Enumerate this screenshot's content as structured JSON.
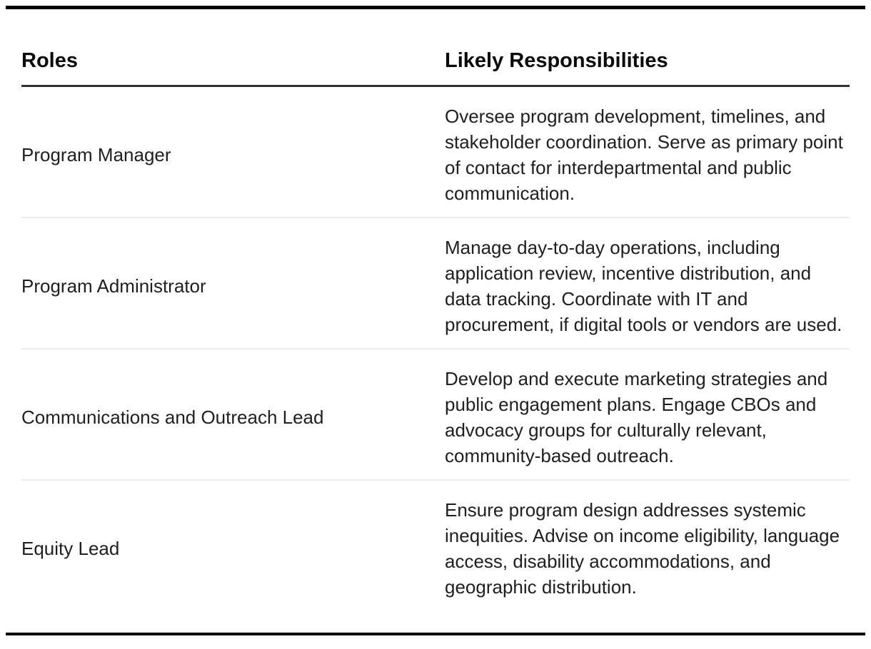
{
  "table": {
    "columns": [
      {
        "label": "Roles"
      },
      {
        "label": "Likely Responsibilities"
      }
    ],
    "rows": [
      {
        "role": "Program Manager",
        "responsibilities": "Oversee program development, timelines, and stakeholder coordination. Serve as primary point of contact for interdepartmental and public communication."
      },
      {
        "role": "Program Administrator",
        "responsibilities": "Manage day-to-day operations, including application review, incentive distribution, and data tracking. Coordinate with IT and procurement, if digital tools or vendors are used."
      },
      {
        "role": "Communications and Outreach Lead",
        "responsibilities": "Develop and execute marketing strategies and public engagement plans. Engage CBOs and advocacy groups for culturally relevant, community-based outreach."
      },
      {
        "role": "Equity Lead",
        "responsibilities": "Ensure program design addresses systemic inequities. Advise on income eligibility, language access, disability accommodations, and geographic distribution."
      }
    ],
    "colors": {
      "outer_rule": "#030303",
      "header_rule": "#333333",
      "row_divider": "#ececec",
      "text": "#202020"
    }
  }
}
